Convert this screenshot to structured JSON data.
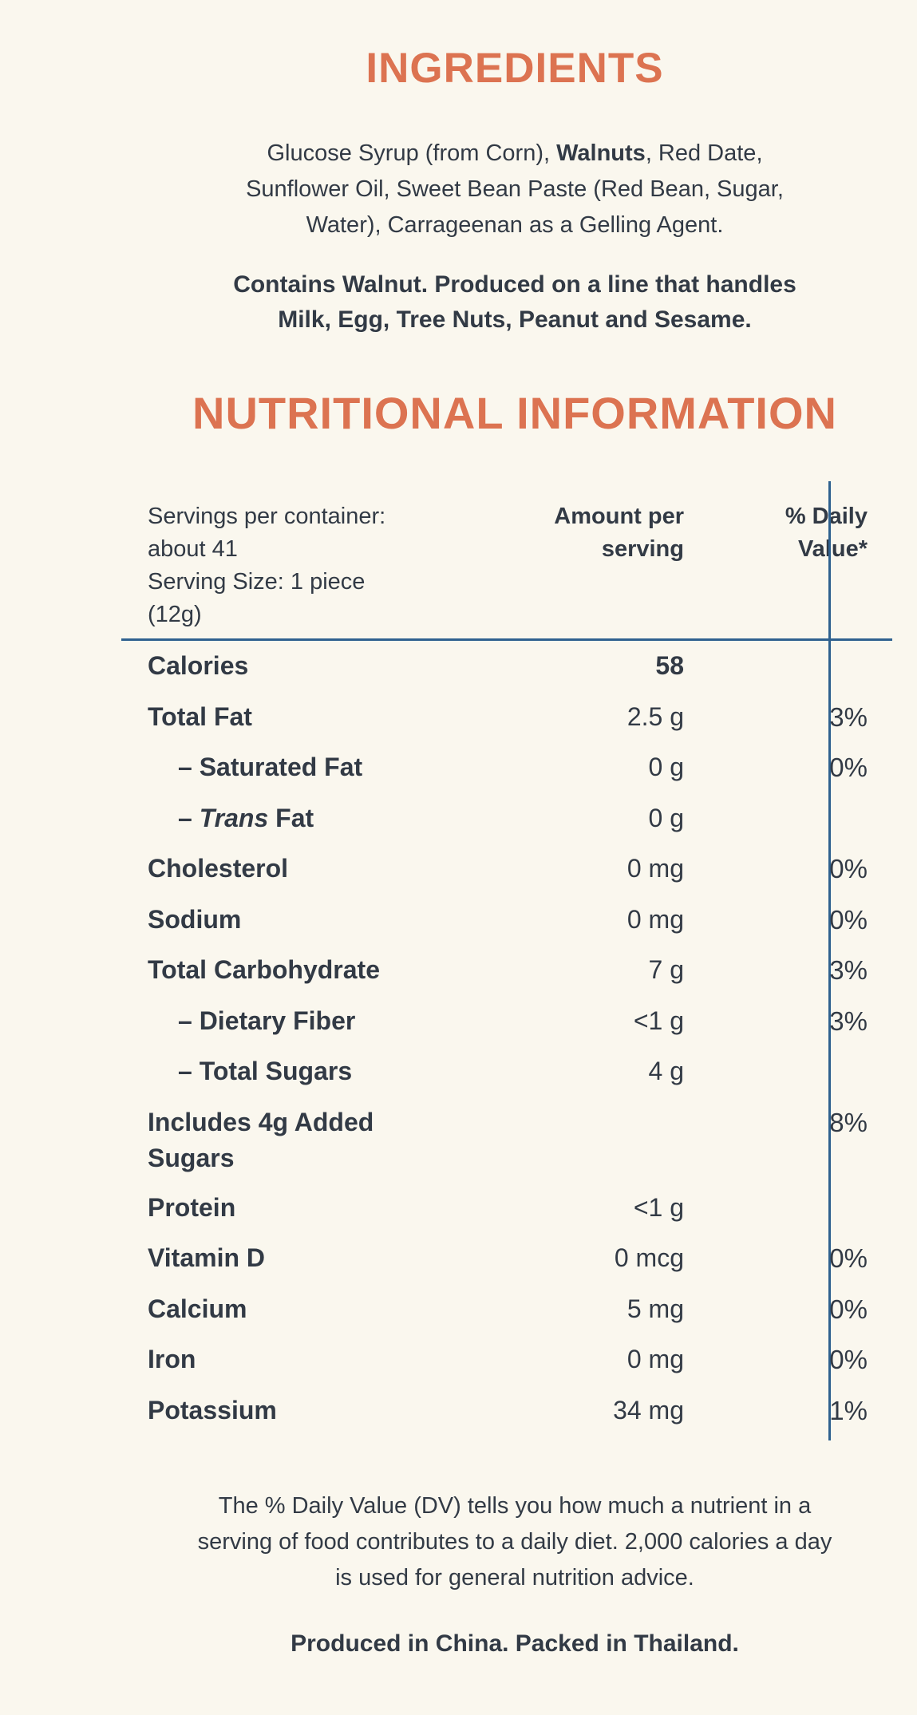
{
  "page": {
    "bg_color": "#faf7ee",
    "accent_color": "#dc7351",
    "text_color": "#323a45",
    "rule_color": "#2f618f"
  },
  "ingredients": {
    "title": "INGREDIENTS",
    "body_parts": [
      {
        "t": "Glucose Syrup (from Corn), "
      },
      {
        "t": "Walnuts",
        "b": true
      },
      {
        "t": ", Red Date,"
      },
      {
        "br": true
      },
      {
        "t": "Sunflower Oil, Sweet Bean Paste (Red Bean, Sugar,"
      },
      {
        "br": true
      },
      {
        "t": "Water), Carrageenan as a Gelling Agent."
      }
    ],
    "allergen_parts": [
      {
        "t": "Contains Walnut. Produced on a line that handles"
      },
      {
        "br": true
      },
      {
        "t": "Milk, Egg, Tree Nuts, Peanut and Sesame."
      }
    ]
  },
  "nutrition": {
    "title": "NUTRITIONAL INFORMATION",
    "header": {
      "serving_lines": [
        "Servings per container:",
        "about 41",
        "Serving Size: 1 piece",
        "(12g)"
      ],
      "amount_lines": [
        "Amount per",
        "serving"
      ],
      "dv_lines": [
        "% Daily",
        "Value*"
      ]
    },
    "rows": [
      {
        "label_parts": [
          {
            "t": "Calories"
          }
        ],
        "amount": "58",
        "amount_bold": true,
        "dv": ""
      },
      {
        "label_parts": [
          {
            "t": "Total Fat"
          }
        ],
        "amount": "2.5 g",
        "dv": "3%"
      },
      {
        "indent": true,
        "label_parts": [
          {
            "t": "– Saturated Fat"
          }
        ],
        "amount": "0 g",
        "dv": "0%"
      },
      {
        "indent": true,
        "label_parts": [
          {
            "t": "– "
          },
          {
            "t": "Trans",
            "i": true
          },
          {
            "t": " Fat"
          }
        ],
        "amount": "0 g",
        "dv": ""
      },
      {
        "label_parts": [
          {
            "t": "Cholesterol"
          }
        ],
        "amount": "0 mg",
        "dv": "0%"
      },
      {
        "label_parts": [
          {
            "t": "Sodium"
          }
        ],
        "amount": "0 mg",
        "dv": "0%"
      },
      {
        "label_parts": [
          {
            "t": "Total Carbohydrate"
          }
        ],
        "amount": "7 g",
        "dv": "3%"
      },
      {
        "indent": true,
        "label_parts": [
          {
            "t": "– Dietary Fiber"
          }
        ],
        "amount": "<1 g",
        "dv": "3%"
      },
      {
        "indent": true,
        "label_parts": [
          {
            "t": "– Total Sugars"
          }
        ],
        "amount": "4 g",
        "dv": ""
      },
      {
        "label_parts": [
          {
            "t": "Includes 4g Added"
          },
          {
            "br": true
          },
          {
            "t": "Sugars"
          }
        ],
        "amount": "",
        "dv": "8%"
      },
      {
        "label_parts": [
          {
            "t": "Protein"
          }
        ],
        "amount": "<1 g",
        "dv": ""
      },
      {
        "label_parts": [
          {
            "t": "Vitamin D"
          }
        ],
        "amount": "0 mcg",
        "dv": "0%"
      },
      {
        "label_parts": [
          {
            "t": "Calcium"
          }
        ],
        "amount": "5 mg",
        "dv": "0%"
      },
      {
        "label_parts": [
          {
            "t": "Iron"
          }
        ],
        "amount": "0 mg",
        "dv": "0%"
      },
      {
        "label_parts": [
          {
            "t": "Potassium"
          }
        ],
        "amount": "34 mg",
        "dv": "1%"
      }
    ],
    "footnote_lines": [
      "The % Daily Value (DV) tells you how much a nutrient in a",
      "serving of food contributes to a daily diet. 2,000 calories a day",
      "is used for general nutrition advice."
    ],
    "origin": "Produced in China. Packed in Thailand."
  }
}
